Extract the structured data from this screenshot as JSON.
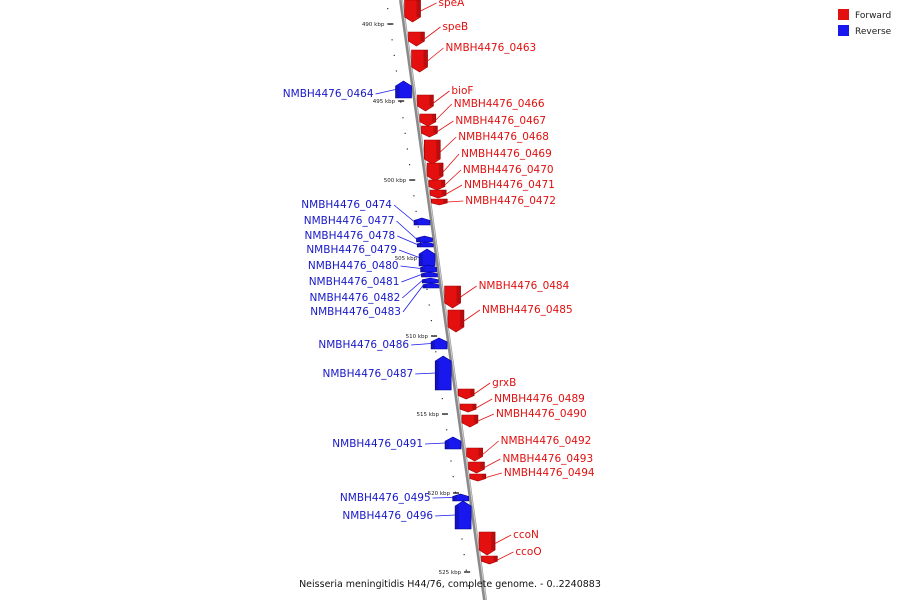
{
  "legend": {
    "forward": {
      "label": "Forward",
      "color": "#e41010"
    },
    "reverse": {
      "label": "Reverse",
      "color": "#1818ee"
    }
  },
  "caption": "Neisseria meningitidis H44/76, complete genome. - 0..2240883",
  "ticks": [
    "490 kbp",
    "495 kbp",
    "500 kbp",
    "505 kbp",
    "510 kbp",
    "515 kbp",
    "520 kbp",
    "525 kbp"
  ],
  "genes": [
    {
      "name": "speA",
      "strand": "forward"
    },
    {
      "name": "speB",
      "strand": "forward"
    },
    {
      "name": "NMBH4476_0463",
      "strand": "forward"
    },
    {
      "name": "NMBH4476_0464",
      "strand": "reverse"
    },
    {
      "name": "bioF",
      "strand": "forward"
    },
    {
      "name": "NMBH4476_0466",
      "strand": "forward"
    },
    {
      "name": "NMBH4476_0467",
      "strand": "forward"
    },
    {
      "name": "NMBH4476_0468",
      "strand": "forward"
    },
    {
      "name": "NMBH4476_0469",
      "strand": "forward"
    },
    {
      "name": "NMBH4476_0470",
      "strand": "forward"
    },
    {
      "name": "NMBH4476_0471",
      "strand": "forward"
    },
    {
      "name": "NMBH4476_0472",
      "strand": "forward"
    },
    {
      "name": "NMBH4476_0474",
      "strand": "reverse"
    },
    {
      "name": "NMBH4476_0477",
      "strand": "reverse"
    },
    {
      "name": "NMBH4476_0478",
      "strand": "reverse"
    },
    {
      "name": "NMBH4476_0479",
      "strand": "reverse"
    },
    {
      "name": "NMBH4476_0480",
      "strand": "reverse"
    },
    {
      "name": "NMBH4476_0481",
      "strand": "reverse"
    },
    {
      "name": "NMBH4476_0482",
      "strand": "reverse"
    },
    {
      "name": "NMBH4476_0483",
      "strand": "reverse"
    },
    {
      "name": "NMBH4476_0484",
      "strand": "forward"
    },
    {
      "name": "NMBH4476_0485",
      "strand": "forward"
    },
    {
      "name": "NMBH4476_0486",
      "strand": "reverse"
    },
    {
      "name": "NMBH4476_0487",
      "strand": "reverse"
    },
    {
      "name": "grxB",
      "strand": "forward"
    },
    {
      "name": "NMBH4476_0489",
      "strand": "forward"
    },
    {
      "name": "NMBH4476_0490",
      "strand": "forward"
    },
    {
      "name": "NMBH4476_0491",
      "strand": "reverse"
    },
    {
      "name": "NMBH4476_0492",
      "strand": "forward"
    },
    {
      "name": "NMBH4476_0493",
      "strand": "forward"
    },
    {
      "name": "NMBH4476_0494",
      "strand": "forward"
    },
    {
      "name": "NMBH4476_0495",
      "strand": "reverse"
    },
    {
      "name": "NMBH4476_0496",
      "strand": "reverse"
    },
    {
      "name": "ccoN",
      "strand": "forward"
    },
    {
      "name": "ccoO",
      "strand": "forward"
    }
  ]
}
